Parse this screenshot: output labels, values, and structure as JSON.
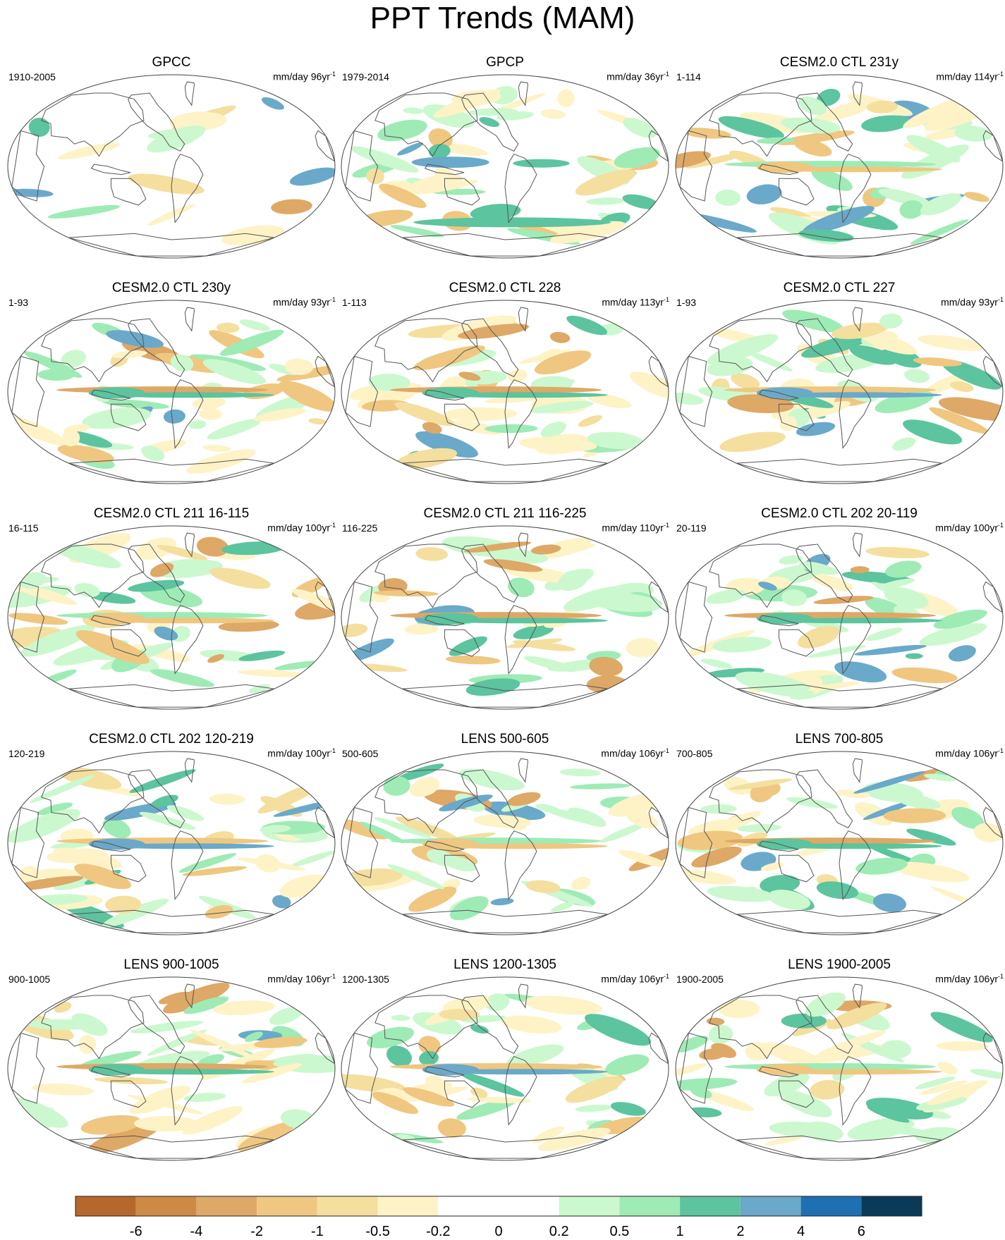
{
  "title": "PPT Trends (MAM)",
  "units_text": "mm/day",
  "units_exp": "-1",
  "panels": [
    {
      "title": "GPCC",
      "period": "1910-2005",
      "units_value": "96yr",
      "pattern": 0
    },
    {
      "title": "GPCP",
      "period": "1979-2014",
      "units_value": "36yr",
      "pattern": 1
    },
    {
      "title": "CESM2.0 CTL 231y",
      "period": "1-114",
      "units_value": "114yr",
      "pattern": 2
    },
    {
      "title": "CESM2.0 CTL 230y",
      "period": "1-93",
      "units_value": "93yr",
      "pattern": 3
    },
    {
      "title": "CESM2.0 CTL 228",
      "period": "1-113",
      "units_value": "113yr",
      "pattern": 4
    },
    {
      "title": "CESM2.0 CTL 227",
      "period": "1-93",
      "units_value": "93yr",
      "pattern": 5
    },
    {
      "title": "CESM2.0 CTL 211 16-115",
      "period": "16-115",
      "units_value": "100yr",
      "pattern": 6
    },
    {
      "title": "CESM2.0 CTL 211 116-225",
      "period": "116-225",
      "units_value": "110yr",
      "pattern": 7
    },
    {
      "title": "CESM2.0 CTL 202 20-119",
      "period": "20-119",
      "units_value": "100yr",
      "pattern": 8
    },
    {
      "title": "CESM2.0 CTL 202 120-219",
      "period": "120-219",
      "units_value": "100yr",
      "pattern": 9
    },
    {
      "title": "LENS 500-605",
      "period": "500-605",
      "units_value": "106yr",
      "pattern": 10
    },
    {
      "title": "LENS 700-805",
      "period": "700-805",
      "units_value": "106yr",
      "pattern": 11
    },
    {
      "title": "LENS 900-1005",
      "period": "900-1005",
      "units_value": "106yr",
      "pattern": 12
    },
    {
      "title": "LENS 1200-1305",
      "period": "1200-1305",
      "units_value": "106yr",
      "pattern": 13
    },
    {
      "title": "LENS 1900-2005",
      "period": "1900-2005",
      "units_value": "106yr",
      "pattern": 14
    }
  ],
  "colorbar": {
    "colors": [
      "#b5682b",
      "#cd8a45",
      "#dea866",
      "#efc780",
      "#f4df9f",
      "#fdf3c6",
      "#ffffff",
      "#ffffff",
      "#ccf8cf",
      "#9eebb6",
      "#5cc49e",
      "#6aa9c9",
      "#1f70b0",
      "#0b3a58"
    ],
    "labels": [
      "-6",
      "-4",
      "-2",
      "-1",
      "-0.5",
      "-0.2",
      "0",
      "0.2",
      "0.5",
      "1",
      "2",
      "4",
      "6"
    ]
  },
  "map_colors": {
    "land_outline": "#555555",
    "frame": "#444444",
    "missing": "#ffffff"
  }
}
